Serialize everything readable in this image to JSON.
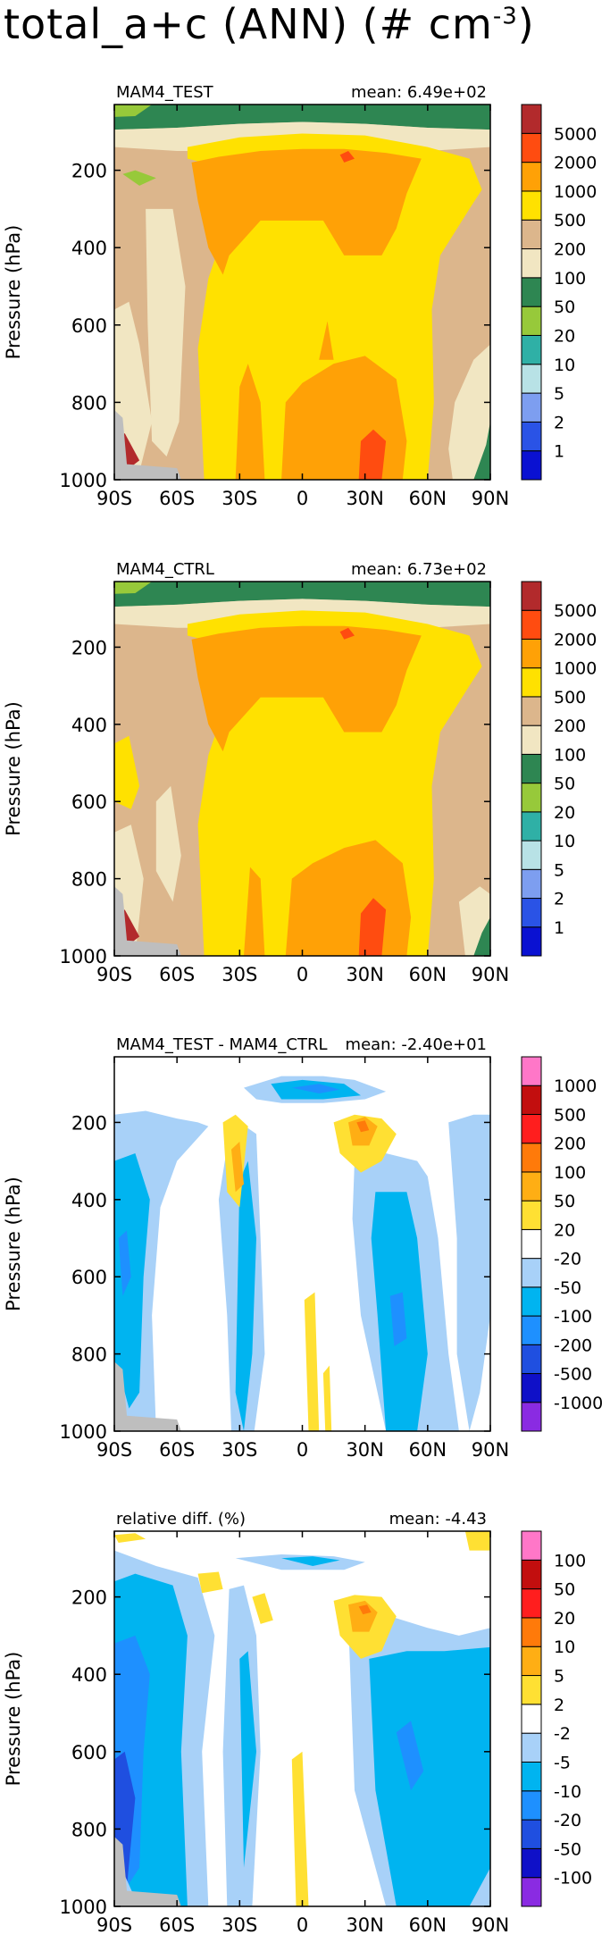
{
  "figure": {
    "title_main": "total_a+c (ANN) (# cm",
    "title_sup": "-3",
    "title_close": ")"
  },
  "palettes": {
    "abs": [
      "#0a11d2",
      "#2a53e6",
      "#7d9ef0",
      "#b8e2e6",
      "#2fb0a6",
      "#97c93a",
      "#2e8652",
      "#f1e6c2",
      "#dcb68c",
      "#ffe100",
      "#ffa106",
      "#ff4c10",
      "#b22a2c"
    ],
    "diff": [
      "#8a2be2",
      "#0f10c8",
      "#1f4fe0",
      "#1e90ff",
      "#00b4f0",
      "#a8d1f8",
      "#ffffff",
      "#ffe033",
      "#ffae14",
      "#ff7a0a",
      "#ff1e1e",
      "#c20e0e",
      "#ff77c8"
    ]
  },
  "chart_data": [
    {
      "type": "contour",
      "subtitle": "MAM4_TEST",
      "mean_label": "mean:  6.49e+02",
      "ylabel": "Pressure (hPa)",
      "x_ticks": [
        "90S",
        "60S",
        "30S",
        "0",
        "30N",
        "60N",
        "90N"
      ],
      "y_ticks": [
        "200",
        "400",
        "600",
        "800",
        "1000"
      ],
      "y_tick_values": [
        200,
        400,
        600,
        800,
        1000
      ],
      "xlim": [
        -90,
        90
      ],
      "ylim": [
        1000,
        30
      ],
      "y_reversed": true,
      "palette": "abs",
      "levels": [
        "1",
        "2",
        "5",
        "10",
        "20",
        "50",
        "100",
        "200",
        "500",
        "1000",
        "2000",
        "5000"
      ],
      "regions": [
        {
          "level": 7,
          "note": "background 200-500 band"
        },
        {
          "level": 6,
          "note": "stratospheric band near top"
        },
        {
          "level": 5,
          "note": "polar tops"
        },
        {
          "level": 8,
          "note": "broad tropical column"
        },
        {
          "level": 9,
          "note": "upper tropical maximum"
        },
        {
          "level": 10,
          "note": "peak 200 hPa near 20N"
        }
      ]
    },
    {
      "type": "contour",
      "subtitle": "MAM4_CTRL",
      "mean_label": "mean:  6.73e+02",
      "ylabel": "Pressure (hPa)",
      "x_ticks": [
        "90S",
        "60S",
        "30S",
        "0",
        "30N",
        "60N",
        "90N"
      ],
      "y_ticks": [
        "200",
        "400",
        "600",
        "800",
        "1000"
      ],
      "y_tick_values": [
        200,
        400,
        600,
        800,
        1000
      ],
      "xlim": [
        -90,
        90
      ],
      "ylim": [
        1000,
        30
      ],
      "y_reversed": true,
      "palette": "abs",
      "levels": [
        "1",
        "2",
        "5",
        "10",
        "20",
        "50",
        "100",
        "200",
        "500",
        "1000",
        "2000",
        "5000"
      ]
    },
    {
      "type": "contour",
      "subtitle": "MAM4_TEST - MAM4_CTRL",
      "mean_label": "mean:  -2.40e+01",
      "ylabel": "Pressure (hPa)",
      "x_ticks": [
        "90S",
        "60S",
        "30S",
        "0",
        "30N",
        "60N",
        "90N"
      ],
      "y_ticks": [
        "200",
        "400",
        "600",
        "800",
        "1000"
      ],
      "y_tick_values": [
        200,
        400,
        600,
        800,
        1000
      ],
      "xlim": [
        -90,
        90
      ],
      "ylim": [
        1000,
        30
      ],
      "y_reversed": true,
      "palette": "diff",
      "levels": [
        "-1000",
        "-500",
        "-200",
        "-100",
        "-50",
        "-20",
        "20",
        "50",
        "100",
        "200",
        "500",
        "1000"
      ]
    },
    {
      "type": "contour",
      "subtitle": "relative diff. (%)",
      "mean_label": "mean:  -4.43",
      "ylabel": "Pressure (hPa)",
      "x_ticks": [
        "90S",
        "60S",
        "30S",
        "0",
        "30N",
        "60N",
        "90N"
      ],
      "y_ticks": [
        "200",
        "400",
        "600",
        "800",
        "1000"
      ],
      "y_tick_values": [
        200,
        400,
        600,
        800,
        1000
      ],
      "xlim": [
        -90,
        90
      ],
      "ylim": [
        1000,
        30
      ],
      "y_reversed": true,
      "palette": "diff",
      "levels": [
        "-100",
        "-50",
        "-20",
        "-10",
        "-5",
        "-2",
        "2",
        "5",
        "10",
        "20",
        "50",
        "100"
      ]
    }
  ]
}
